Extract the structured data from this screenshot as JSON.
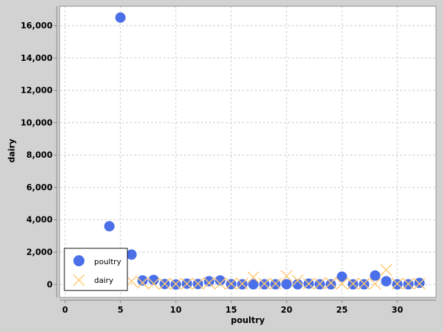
{
  "chart_data": {
    "type": "scatter",
    "xlabel": "poultry",
    "ylabel": "dairy",
    "xlim": [
      -0.5,
      33.5
    ],
    "ylim": [
      -800,
      17200
    ],
    "xticks": [
      0,
      5,
      10,
      15,
      20,
      25,
      30
    ],
    "yticks": [
      0,
      2000,
      4000,
      6000,
      8000,
      10000,
      12000,
      14000,
      16000
    ],
    "ytick_labels": [
      "0",
      "2,000",
      "4,000",
      "6,000",
      "8,000",
      "10,000",
      "12,000",
      "14,000",
      "16,000"
    ],
    "grid": true,
    "legend_position": "bottom-left",
    "colors": {
      "poultry": "#4a6fe8",
      "dairy": "#ffc870",
      "plot_bg": "#ffffff",
      "page_bg": "#d2d2d2",
      "grid": "#c8c8c8"
    },
    "series": [
      {
        "name": "poultry",
        "marker": "circle",
        "x": [
          4,
          5,
          6,
          7,
          8,
          9,
          10,
          11,
          12,
          13,
          14,
          15,
          16,
          17,
          18,
          19,
          20,
          21,
          22,
          23,
          24,
          25,
          26,
          27,
          28,
          29,
          30,
          31,
          32
        ],
        "y": [
          3600,
          16500,
          1850,
          250,
          280,
          30,
          0,
          50,
          30,
          200,
          250,
          20,
          10,
          10,
          10,
          10,
          20,
          10,
          50,
          10,
          10,
          480,
          10,
          10,
          550,
          200,
          10,
          10,
          100
        ]
      },
      {
        "name": "dairy",
        "marker": "x",
        "x": [
          6,
          7,
          8,
          9,
          10,
          11,
          12,
          13,
          14,
          15,
          16,
          17,
          18,
          19,
          20,
          21,
          22,
          23,
          24,
          25,
          26,
          27,
          28,
          29,
          30,
          31,
          32
        ],
        "y": [
          200,
          100,
          50,
          50,
          30,
          50,
          50,
          100,
          50,
          50,
          50,
          450,
          50,
          50,
          520,
          250,
          50,
          50,
          100,
          50,
          50,
          50,
          50,
          900,
          50,
          50,
          50
        ]
      }
    ]
  }
}
